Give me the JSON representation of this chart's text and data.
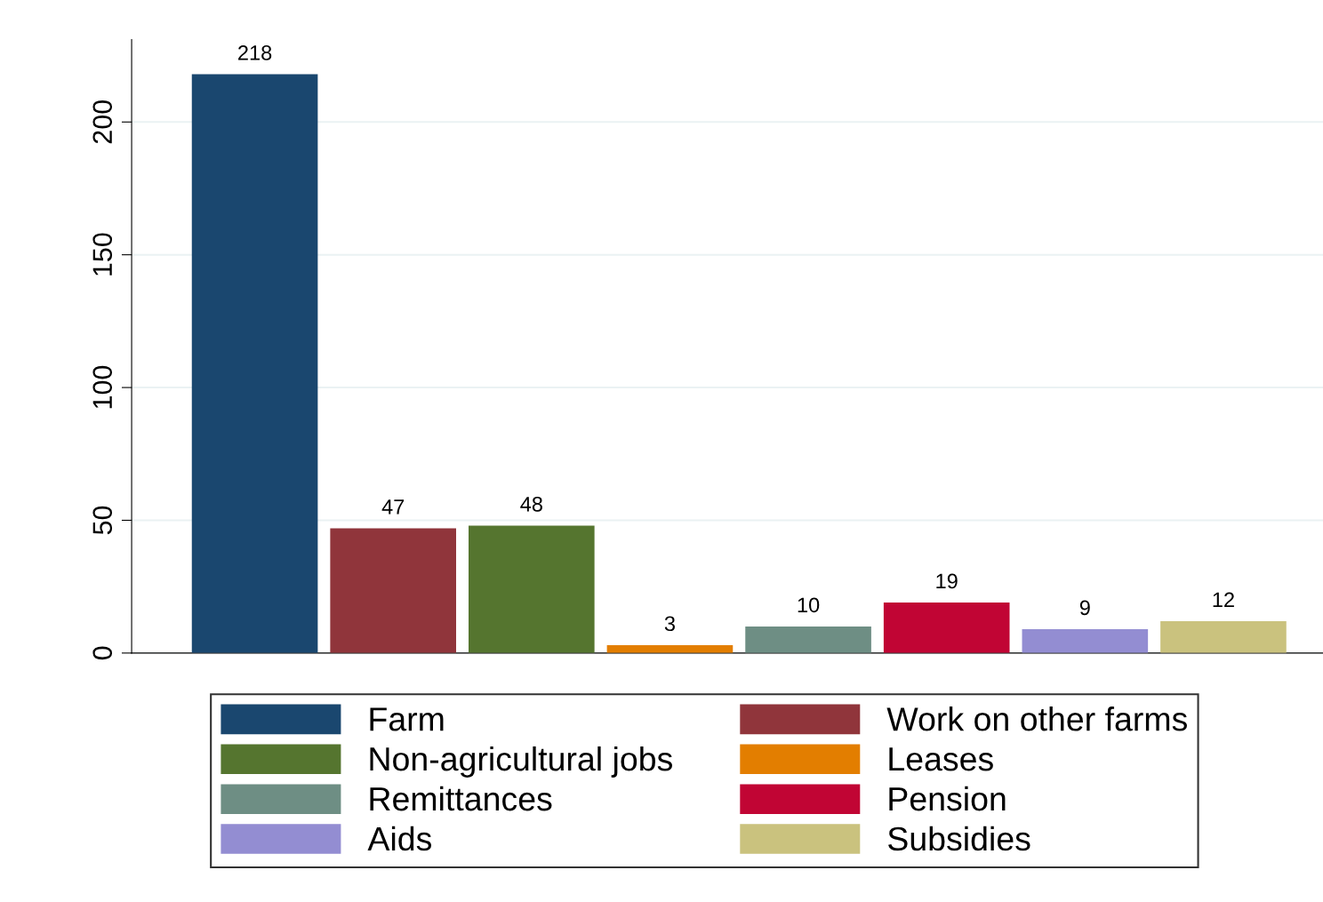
{
  "chart_data": {
    "type": "bar",
    "categories": [
      null,
      null,
      null,
      null,
      null,
      null,
      null,
      null
    ],
    "series": [
      {
        "name": "Farm",
        "color": "#1a476f",
        "values": [
          218,
          null,
          null,
          null,
          null,
          null,
          null,
          null
        ]
      },
      {
        "name": "Work on other farms",
        "color": "#90353b",
        "values": [
          null,
          47,
          null,
          null,
          null,
          null,
          null,
          null
        ]
      },
      {
        "name": "Non-agricultural jobs",
        "color": "#55752f",
        "values": [
          null,
          null,
          48,
          null,
          null,
          null,
          null,
          null
        ]
      },
      {
        "name": "Leases",
        "color": "#e37e00",
        "values": [
          null,
          null,
          null,
          3,
          null,
          null,
          null,
          null
        ]
      },
      {
        "name": "Remittances",
        "color": "#6e8e84",
        "values": [
          null,
          null,
          null,
          null,
          10,
          null,
          null,
          null
        ]
      },
      {
        "name": "Pension",
        "color": "#c10534",
        "values": [
          null,
          null,
          null,
          null,
          null,
          19,
          null,
          null
        ]
      },
      {
        "name": "Aids",
        "color": "#938dd2",
        "values": [
          null,
          null,
          null,
          null,
          null,
          null,
          9,
          null
        ]
      },
      {
        "name": "Subsidies",
        "color": "#cac27e",
        "values": [
          null,
          null,
          null,
          null,
          null,
          null,
          null,
          12
        ]
      }
    ],
    "ylim": [
      0,
      231
    ],
    "yticks": [
      0,
      50,
      100,
      150,
      200
    ],
    "grid": "y",
    "legend": "bottom",
    "data_labels": true
  }
}
